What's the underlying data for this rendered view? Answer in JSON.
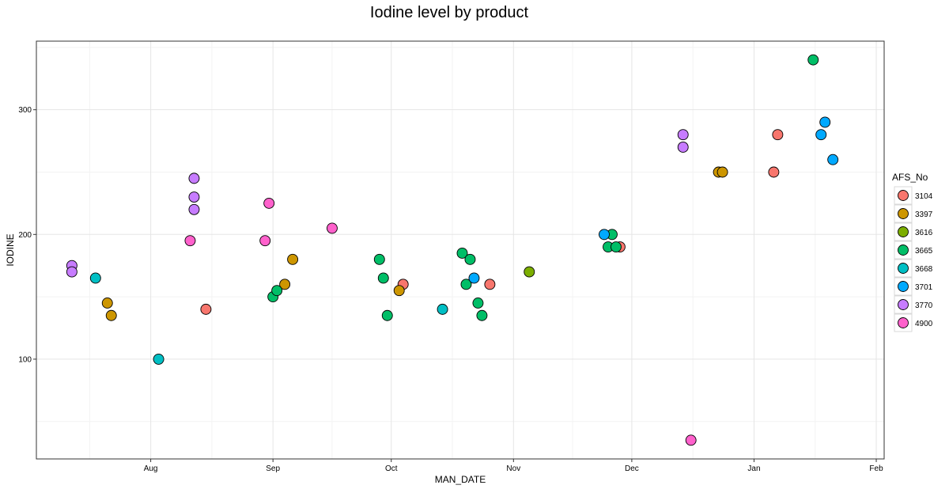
{
  "chart_data": {
    "type": "scatter",
    "title": "Iodine level by product",
    "xlabel": "MAN_DATE",
    "ylabel": "IODINE",
    "x_ticks": [
      "Aug",
      "Sep",
      "Oct",
      "Nov",
      "Dec",
      "Jan",
      "Feb"
    ],
    "x_tick_dates": [
      "2015-08-01",
      "2015-09-01",
      "2015-10-01",
      "2015-11-01",
      "2015-12-01",
      "2016-01-01",
      "2016-02-01"
    ],
    "xlim": [
      "2015-07-03",
      "2016-02-03"
    ],
    "y_ticks": [
      100,
      200,
      300
    ],
    "ylim": [
      20,
      355
    ],
    "grid": true,
    "legend_title": "AFS_No",
    "legend_position": "right",
    "series": [
      {
        "name": "3104",
        "color": "#F8766D",
        "points": [
          {
            "x": "2015-08-15",
            "y": 140
          },
          {
            "x": "2015-10-04",
            "y": 160
          },
          {
            "x": "2015-10-26",
            "y": 160
          },
          {
            "x": "2015-11-28",
            "y": 190
          },
          {
            "x": "2016-01-06",
            "y": 250
          },
          {
            "x": "2016-01-07",
            "y": 280
          }
        ]
      },
      {
        "name": "3397",
        "color": "#CD9600",
        "points": [
          {
            "x": "2015-07-21",
            "y": 145
          },
          {
            "x": "2015-07-22",
            "y": 135
          },
          {
            "x": "2015-09-04",
            "y": 160
          },
          {
            "x": "2015-09-06",
            "y": 180
          },
          {
            "x": "2015-10-03",
            "y": 155
          },
          {
            "x": "2015-12-23",
            "y": 250
          },
          {
            "x": "2015-12-24",
            "y": 250
          }
        ]
      },
      {
        "name": "3616",
        "color": "#7CAE00",
        "points": [
          {
            "x": "2015-11-05",
            "y": 170
          }
        ]
      },
      {
        "name": "3665",
        "color": "#00BE67",
        "points": [
          {
            "x": "2015-09-01",
            "y": 150
          },
          {
            "x": "2015-09-02",
            "y": 155
          },
          {
            "x": "2015-09-28",
            "y": 180
          },
          {
            "x": "2015-09-29",
            "y": 165
          },
          {
            "x": "2015-09-30",
            "y": 135
          },
          {
            "x": "2015-10-19",
            "y": 185
          },
          {
            "x": "2015-10-20",
            "y": 160
          },
          {
            "x": "2015-10-21",
            "y": 180
          },
          {
            "x": "2015-10-23",
            "y": 145
          },
          {
            "x": "2015-10-24",
            "y": 135
          },
          {
            "x": "2015-11-25",
            "y": 190
          },
          {
            "x": "2015-11-26",
            "y": 200
          },
          {
            "x": "2015-11-27",
            "y": 190
          },
          {
            "x": "2016-01-16",
            "y": 340
          }
        ]
      },
      {
        "name": "3668",
        "color": "#00BFC4",
        "points": [
          {
            "x": "2015-07-18",
            "y": 165
          },
          {
            "x": "2015-08-03",
            "y": 100
          },
          {
            "x": "2015-10-14",
            "y": 140
          }
        ]
      },
      {
        "name": "3701",
        "color": "#00A9FF",
        "points": [
          {
            "x": "2015-10-22",
            "y": 165
          },
          {
            "x": "2015-11-24",
            "y": 200
          },
          {
            "x": "2016-01-18",
            "y": 280
          },
          {
            "x": "2016-01-19",
            "y": 290
          },
          {
            "x": "2016-01-21",
            "y": 260
          }
        ]
      },
      {
        "name": "3770",
        "color": "#C77CFF",
        "points": [
          {
            "x": "2015-07-12",
            "y": 175
          },
          {
            "x": "2015-07-12",
            "y": 170
          },
          {
            "x": "2015-08-12",
            "y": 245
          },
          {
            "x": "2015-08-12",
            "y": 230
          },
          {
            "x": "2015-08-12",
            "y": 220
          },
          {
            "x": "2015-12-14",
            "y": 280
          },
          {
            "x": "2015-12-14",
            "y": 270
          }
        ]
      },
      {
        "name": "4900",
        "color": "#FF61CC",
        "points": [
          {
            "x": "2015-08-11",
            "y": 195
          },
          {
            "x": "2015-08-30",
            "y": 195
          },
          {
            "x": "2015-08-31",
            "y": 225
          },
          {
            "x": "2015-09-16",
            "y": 205
          },
          {
            "x": "2015-12-16",
            "y": 35
          }
        ]
      }
    ]
  }
}
